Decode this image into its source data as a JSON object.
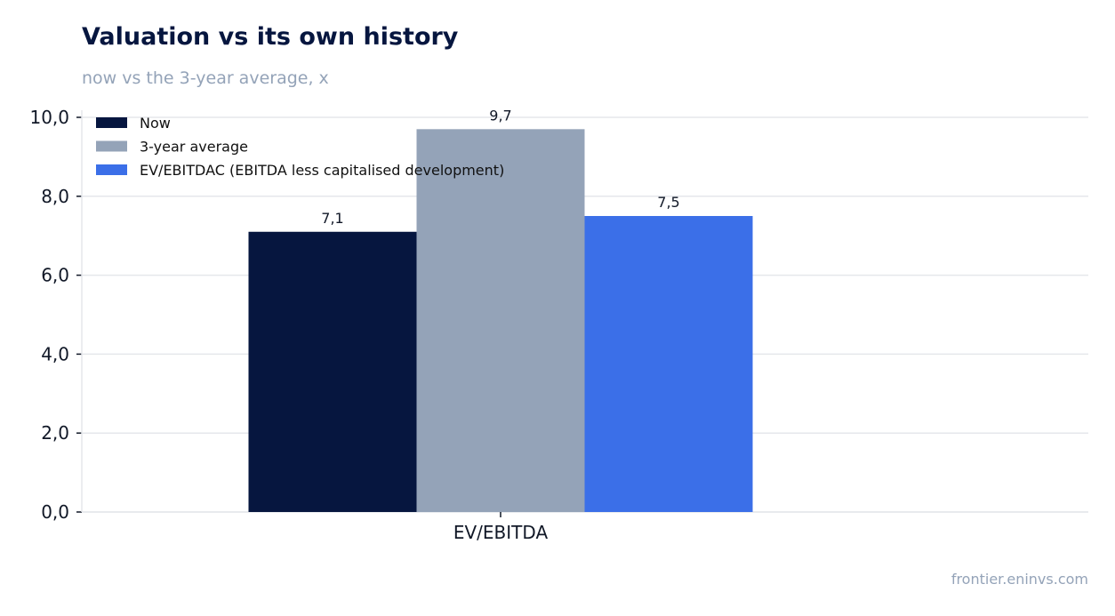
{
  "title": "Valuation vs its own history",
  "subtitle": "now vs the 3-year average, x",
  "source": "frontier.eninvs.com",
  "chart_data": {
    "type": "bar",
    "categories": [
      "EV/EBITDA"
    ],
    "series": [
      {
        "name": "Now",
        "values": [
          7.1
        ],
        "label": "7,1",
        "color": "#06163f"
      },
      {
        "name": "3-year average",
        "values": [
          9.7
        ],
        "label": "9,7",
        "color": "#94a3b8"
      },
      {
        "name": "EV/EBITDAC (EBITDA less capitalised development)",
        "values": [
          7.5
        ],
        "label": "7,5",
        "color": "#3b6fe8"
      }
    ],
    "ylim": [
      0,
      10
    ],
    "yticks": [
      0,
      2,
      4,
      6,
      8,
      10
    ],
    "ytick_labels": [
      "0,0",
      "2,0",
      "4,0",
      "6,0",
      "8,0",
      "10,0"
    ],
    "grid": true,
    "legend": "top-left"
  }
}
